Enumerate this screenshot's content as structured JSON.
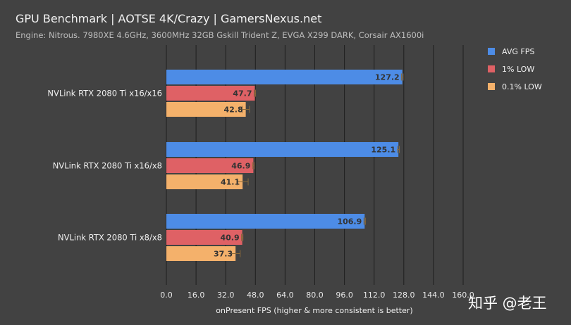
{
  "chart_data": {
    "type": "bar",
    "orientation": "horizontal",
    "title": "GPU Benchmark | AOTSE 4K/Crazy | GamersNexus.net",
    "subtitle": "Engine: Nitrous. 7980XE 4.6GHz, 3600MHz 32GB Gskill Trident Z, EVGA X299 DARK, Corsair AX1600i",
    "xlabel": "onPresent FPS (higher & more consistent is better)",
    "ylabel": "",
    "xlim": [
      0,
      160
    ],
    "xticks": [
      "0.0",
      "16.0",
      "32.0",
      "48.0",
      "64.0",
      "80.0",
      "96.0",
      "112.0",
      "128.0",
      "144.0",
      "160.0"
    ],
    "grid": true,
    "legend_position": "top-right",
    "categories": [
      "NVLink RTX 2080 Ti x16/x16",
      "NVLink RTX 2080 Ti x16/x8",
      "NVLink RTX 2080 Ti x8/x8"
    ],
    "series": [
      {
        "name": "AVG FPS",
        "color": "#4d8ce6",
        "values": [
          127.2,
          125.1,
          106.9
        ],
        "labels": [
          "127.2",
          "125.1",
          "106.9"
        ],
        "error": [
          0.5,
          0.5,
          0.4
        ]
      },
      {
        "name": "1% LOW",
        "color": "#df6165",
        "values": [
          47.7,
          46.9,
          40.9
        ],
        "labels": [
          "47.7",
          "46.9",
          "40.9"
        ],
        "error": [
          0.4,
          0.4,
          0.4
        ]
      },
      {
        "name": "0.1% LOW",
        "color": "#f4b16b",
        "values": [
          42.8,
          41.1,
          37.3
        ],
        "labels": [
          "42.8",
          "41.1",
          "37.3"
        ],
        "error": [
          2.0,
          3.0,
          2.5
        ]
      }
    ]
  },
  "watermark": "知乎 @老王",
  "colors": {
    "background": "#424242",
    "grid": "#1f1f1f"
  }
}
